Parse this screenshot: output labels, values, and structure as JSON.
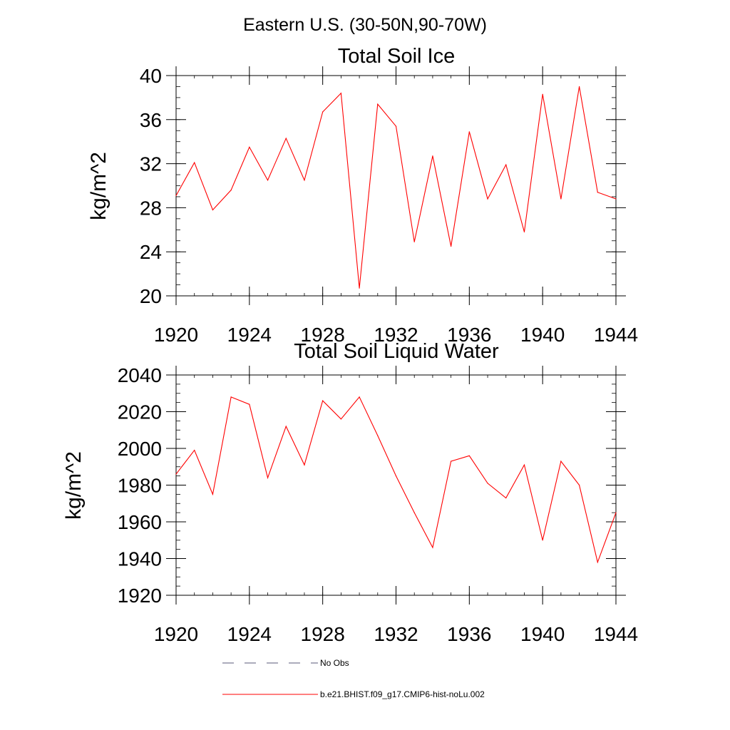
{
  "figure": {
    "suptitle": "Eastern U.S. (30-50N,90-70W)",
    "legend": [
      {
        "label": "No Obs",
        "color": "#5a5a7a",
        "style": "dashed"
      },
      {
        "label": "b.e21.BHIST.f09_g17.CMIP6-hist-noLu.002",
        "color": "#ff0000",
        "style": "solid"
      }
    ]
  },
  "chart_data": [
    {
      "type": "line",
      "title": "Total Soil Ice",
      "xlabel": "",
      "ylabel": "kg/m^2",
      "xlim": [
        1920,
        1944
      ],
      "ylim": [
        20,
        40
      ],
      "xticks": [
        1920,
        1924,
        1928,
        1932,
        1936,
        1940,
        1944
      ],
      "xtick_labels": [
        "1920",
        "1924",
        "1928",
        "1932",
        "1936",
        "1940",
        "1944"
      ],
      "yticks": [
        20,
        24,
        28,
        32,
        36,
        40
      ],
      "ytick_labels": [
        "20",
        "24",
        "28",
        "32",
        "36",
        "40"
      ],
      "y_minor_step": 1,
      "grid": false,
      "series": [
        {
          "name": "b.e21.BHIST.f09_g17.CMIP6-hist-noLu.002",
          "color": "#ff0000",
          "x": [
            1920,
            1921,
            1922,
            1923,
            1924,
            1925,
            1926,
            1927,
            1928,
            1929,
            1930,
            1931,
            1932,
            1933,
            1934,
            1935,
            1936,
            1937,
            1938,
            1939,
            1940,
            1941,
            1942,
            1943,
            1944
          ],
          "y": [
            29.1,
            32.1,
            27.8,
            29.6,
            33.5,
            30.5,
            34.3,
            30.5,
            36.7,
            38.4,
            20.7,
            37.4,
            35.4,
            24.9,
            32.7,
            24.5,
            34.9,
            28.8,
            31.9,
            25.8,
            38.3,
            28.8,
            39.0,
            29.4,
            28.8
          ]
        }
      ]
    },
    {
      "type": "line",
      "title": "Total Soil Liquid Water",
      "xlabel": "",
      "ylabel": "kg/m^2",
      "xlim": [
        1920,
        1944
      ],
      "ylim": [
        1920,
        2040
      ],
      "xticks": [
        1920,
        1924,
        1928,
        1932,
        1936,
        1940,
        1944
      ],
      "xtick_labels": [
        "1920",
        "1924",
        "1928",
        "1932",
        "1936",
        "1940",
        "1944"
      ],
      "yticks": [
        1920,
        1940,
        1960,
        1980,
        2000,
        2020,
        2040
      ],
      "ytick_labels": [
        "1920",
        "1940",
        "1960",
        "1980",
        "2000",
        "2020",
        "2040"
      ],
      "y_minor_step": 5,
      "grid": false,
      "series": [
        {
          "name": "b.e21.BHIST.f09_g17.CMIP6-hist-noLu.002",
          "color": "#ff0000",
          "x": [
            1920,
            1921,
            1922,
            1923,
            1924,
            1925,
            1926,
            1927,
            1928,
            1929,
            1930,
            1931,
            1932,
            1933,
            1934,
            1935,
            1936,
            1937,
            1938,
            1939,
            1940,
            1941,
            1942,
            1943,
            1944
          ],
          "y": [
            1986,
            1999,
            1975,
            2028,
            2024,
            1984,
            2012,
            1991,
            2026,
            2016,
            2028,
            2007,
            1985,
            1965,
            1946,
            1993,
            1996,
            1981,
            1973,
            1991,
            1950,
            1993,
            1980,
            1938,
            1965
          ]
        }
      ]
    }
  ]
}
